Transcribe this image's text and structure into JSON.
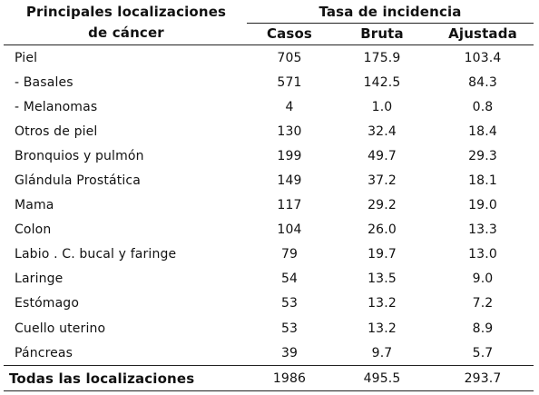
{
  "header": {
    "location_title_line1": "Principales localizaciones",
    "location_title_line2": "de cáncer",
    "incidence_title": "Tasa de incidencia",
    "col_casos": "Casos",
    "col_bruta": "Bruta",
    "col_ajustada": "Ajustada"
  },
  "rows": [
    {
      "loc": "Piel",
      "casos": "705",
      "bruta": "175.9",
      "ajustada": "103.4"
    },
    {
      "loc": "- Basales",
      "casos": "571",
      "bruta": "142.5",
      "ajustada": "84.3"
    },
    {
      "loc": "- Melanomas",
      "casos": "4",
      "bruta": "1.0",
      "ajustada": "0.8"
    },
    {
      "loc": "Otros de piel",
      "casos": "130",
      "bruta": "32.4",
      "ajustada": "18.4"
    },
    {
      "loc": "Bronquios y pulmón",
      "casos": "199",
      "bruta": "49.7",
      "ajustada": "29.3"
    },
    {
      "loc": "Glándula Prostática",
      "casos": "149",
      "bruta": "37.2",
      "ajustada": "18.1"
    },
    {
      "loc": "Mama",
      "casos": "117",
      "bruta": "29.2",
      "ajustada": "19.0"
    },
    {
      "loc": "Colon",
      "casos": "104",
      "bruta": "26.0",
      "ajustada": "13.3"
    },
    {
      "loc": "Labio . C. bucal y faringe",
      "casos": "79",
      "bruta": "19.7",
      "ajustada": "13.0"
    },
    {
      "loc": "Laringe",
      "casos": "54",
      "bruta": "13.5",
      "ajustada": "9.0"
    },
    {
      "loc": "Estómago",
      "casos": "53",
      "bruta": "13.2",
      "ajustada": "7.2"
    },
    {
      "loc": "Cuello uterino",
      "casos": "53",
      "bruta": "13.2",
      "ajustada": "8.9"
    },
    {
      "loc": "Páncreas",
      "casos": "39",
      "bruta": "9.7",
      "ajustada": "5.7"
    }
  ],
  "total": {
    "loc": "Todas las localizaciones",
    "casos": "1986",
    "bruta": "495.5",
    "ajustada": "293.7"
  }
}
